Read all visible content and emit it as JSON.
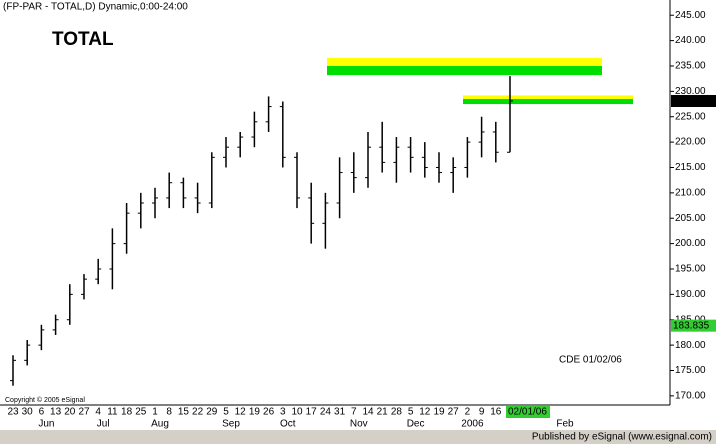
{
  "chart_data": {
    "type": "ohlc",
    "header": "(FP-PAR - TOTAL,D) Dynamic,0:00-24:00",
    "title": "TOTAL",
    "annotation": "CDE 01/02/06",
    "copyright": "Copyright © 2005 eSignal",
    "footer": "Published by eSignal (www.esignal.com)",
    "color": "#000000",
    "categories": [
      "23",
      "30",
      "6",
      "13",
      "20",
      "27",
      "4",
      "11",
      "18",
      "25",
      "1",
      "8",
      "15",
      "22",
      "29",
      "5",
      "12",
      "19",
      "26",
      "3",
      "10",
      "17",
      "24",
      "31",
      "7",
      "14",
      "21",
      "28",
      "5",
      "12",
      "19",
      "27",
      "2",
      "9",
      "16",
      "02/01/06"
    ],
    "months": [
      null,
      null,
      "Jun",
      null,
      null,
      null,
      "Jul",
      null,
      null,
      null,
      "Aug",
      null,
      null,
      null,
      null,
      "Sep",
      null,
      null,
      null,
      "Oct",
      null,
      null,
      null,
      null,
      "Nov",
      null,
      null,
      null,
      "Dec",
      null,
      null,
      null,
      "2006",
      null,
      null,
      "Feb"
    ],
    "open": [
      173,
      177,
      180,
      183,
      185,
      190,
      193,
      195,
      200,
      206,
      208,
      209,
      212,
      209,
      208,
      217,
      219,
      221,
      224,
      227,
      217,
      209,
      204,
      208,
      214,
      213,
      219,
      216,
      219,
      217,
      215,
      214,
      215,
      220,
      222,
      218
    ],
    "high": [
      178,
      181,
      184,
      186,
      192,
      194,
      197,
      203,
      208,
      210,
      211,
      214,
      213,
      212,
      218,
      221,
      222,
      226,
      229,
      228,
      218,
      212,
      210,
      217,
      218,
      222,
      224,
      221,
      221,
      220,
      218,
      217,
      221,
      225,
      224,
      233
    ],
    "low": [
      172,
      176,
      179,
      182,
      184,
      189,
      192,
      191,
      198,
      203,
      205,
      207,
      207,
      206,
      207,
      215,
      217,
      219,
      222,
      215,
      207,
      200,
      199,
      205,
      210,
      211,
      214,
      212,
      214,
      213,
      212,
      210,
      213,
      217,
      216,
      218
    ],
    "close": [
      177,
      180,
      183,
      185,
      190,
      193,
      195,
      200,
      206,
      208,
      209,
      212,
      209,
      208,
      217,
      219,
      221,
      224,
      227,
      217,
      209,
      204,
      208,
      214,
      213,
      219,
      216,
      219,
      217,
      215,
      214,
      215,
      220,
      222,
      218,
      228.1
    ],
    "ylim": [
      168.2,
      248
    ],
    "yticks": [
      {
        "value": 170,
        "label": "170.00"
      },
      {
        "value": 175,
        "label": "175.00"
      },
      {
        "value": 180,
        "label": "180.00"
      },
      {
        "value": 185,
        "label": "185.00"
      },
      {
        "value": 190,
        "label": "190.00"
      },
      {
        "value": 195,
        "label": "195.00"
      },
      {
        "value": 200,
        "label": "200.00"
      },
      {
        "value": 205,
        "label": "205.00"
      },
      {
        "value": 210,
        "label": "210.00"
      },
      {
        "value": 215,
        "label": "215.00"
      },
      {
        "value": 220,
        "label": "220.00"
      },
      {
        "value": 225,
        "label": "225.00"
      },
      {
        "value": 230,
        "label": "230.00"
      },
      {
        "value": 235,
        "label": "235.00"
      },
      {
        "value": 240,
        "label": "240.00"
      },
      {
        "value": 245,
        "label": "245.00"
      }
    ],
    "price_markers": [
      {
        "value": 228.1,
        "label": "228.10",
        "color": "#000000"
      },
      {
        "value": 183.835,
        "label": "183.835",
        "color": "#33cc33"
      }
    ],
    "zones": [
      {
        "top": 236.6,
        "middle": 235,
        "bottom": 233.2
      },
      {
        "top": 229.2,
        "middle": 228.5,
        "bottom": 227.5
      }
    ]
  }
}
